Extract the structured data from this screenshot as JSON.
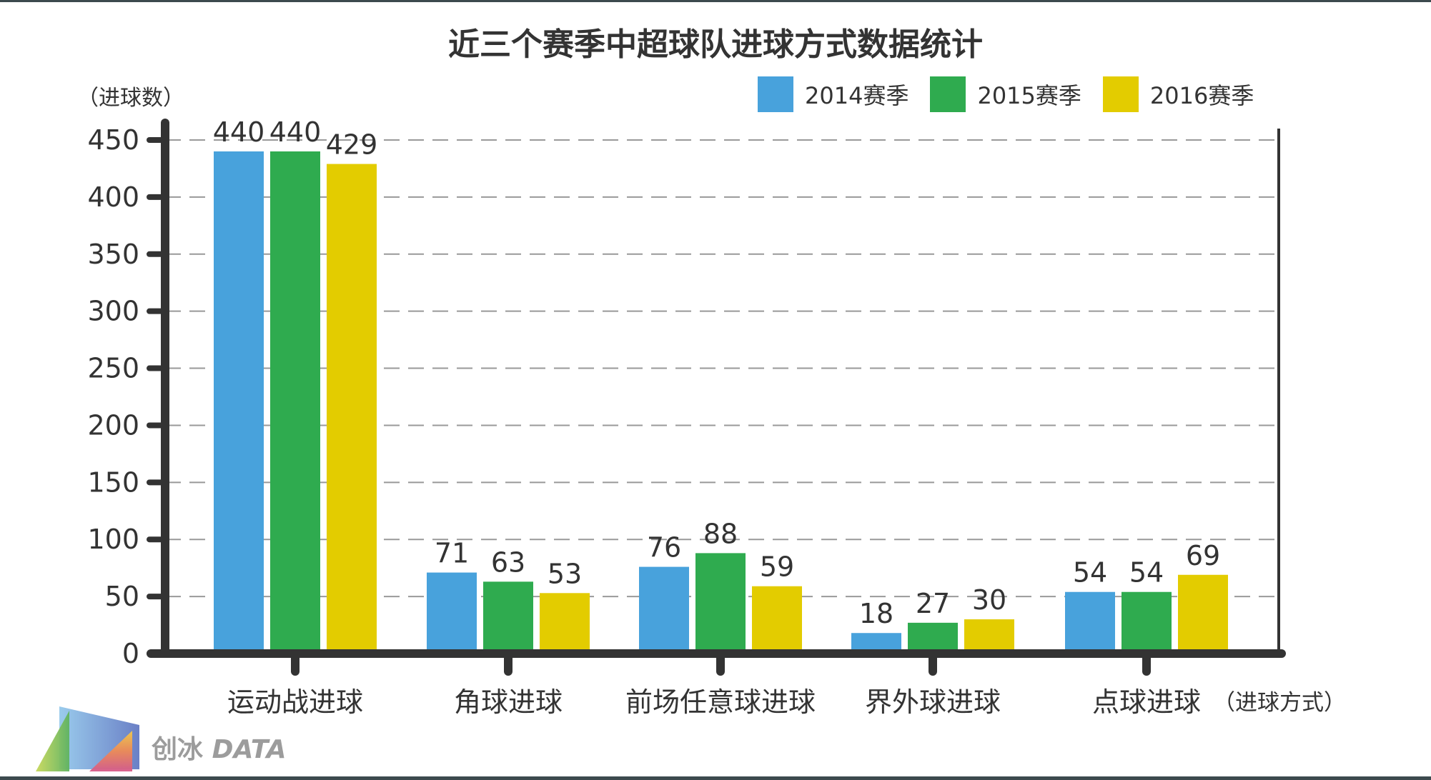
{
  "chart_data": {
    "type": "bar",
    "title": "近三个赛季中超球队进球方式数据统计",
    "ylabel": "（进球数）",
    "xlabel": "（进球方式）",
    "categories": [
      "运动战进球",
      "角球进球",
      "前场任意球进球",
      "界外球进球",
      "点球进球"
    ],
    "series": [
      {
        "name": "2014赛季",
        "color": "#48a2dc",
        "values": [
          440,
          71,
          76,
          18,
          54
        ]
      },
      {
        "name": "2015赛季",
        "color": "#2fab4f",
        "values": [
          440,
          63,
          88,
          27,
          54
        ]
      },
      {
        "name": "2016赛季",
        "color": "#e3cc00",
        "values": [
          429,
          53,
          59,
          30,
          69
        ]
      }
    ],
    "ylim": [
      0,
      450
    ],
    "yticks": [
      0,
      50,
      100,
      150,
      200,
      250,
      300,
      350,
      400,
      450
    ],
    "grid": true,
    "legend_position": "top-right"
  },
  "logo": {
    "text_cn": "创冰",
    "text_en": "DATA"
  }
}
